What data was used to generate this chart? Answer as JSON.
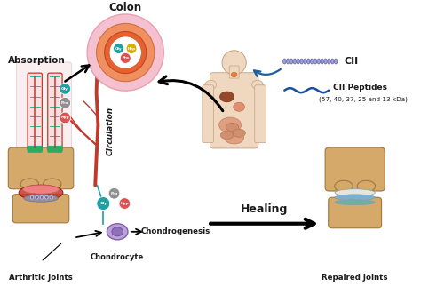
{
  "bg_color": "#ffffff",
  "labels": {
    "absorption": "Absorption",
    "colon": "Colon",
    "circulation": "Circulation",
    "healing": "Healing",
    "arthritic_joints": "Arthritic Joints",
    "chondrocyte": "Chondrocyte",
    "chondrogenesis": "Chondrogenesis",
    "repaired_joints": "Repaired Joints",
    "cii": "CII",
    "cii_peptides": "CII Peptides",
    "cii_peptides_sub": "(57, 40, 37, 25 and 13 kDa)"
  },
  "colors": {
    "arrow_dark": "#1a1a1a",
    "arrow_blue": "#1a5fa0",
    "colon_outer": "#f5c0d0",
    "colon_mid": "#f09060",
    "colon_inner_ring": "#e07040",
    "colon_core": "#ffffff",
    "cii_stripe": "#9090c8",
    "cii_peptide_line": "#1a4fa0",
    "villi_red": "#c0392b",
    "villi_green": "#27ae60",
    "villi_teal": "#1abc9c",
    "villi_blue": "#2980b9",
    "villi_bg": "#f5e0e0",
    "blood_red": "#c0392b",
    "blood_dark": "#8b0000",
    "knee_tan": "#d4a96a",
    "knee_tan_light": "#e8c88a",
    "knee_pink": "#e87878",
    "knee_red": "#c0392b",
    "knee_blue": "#7fb3d3",
    "knee_gray": "#b0b8c8",
    "knee_white": "#f0ece0",
    "repaired_tan": "#d4a96a",
    "repaired_blue": "#7ab0d0",
    "repaired_white": "#e8e4d8",
    "repaired_teal": "#70b0a0",
    "cell_purple": "#8060a0",
    "cell_light": "#c0a0d8",
    "amino_teal": "#20a0a0",
    "amino_gray": "#909090",
    "amino_red": "#e05050",
    "text_dark": "#1a1a1a",
    "body_skin": "#f0d8c0",
    "body_edge": "#c0a080"
  },
  "figsize": [
    4.74,
    3.23
  ],
  "dpi": 100
}
